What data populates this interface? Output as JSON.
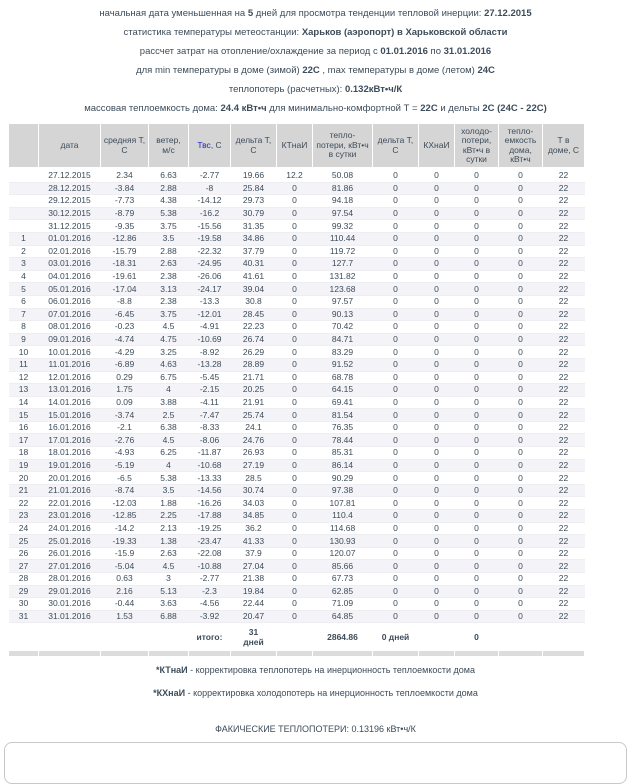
{
  "page": {
    "text_color": "#3d4c5a",
    "accent_blue": "#2222cc",
    "header_cell_bg": "#d5d5d5",
    "stripe_bg": "#f4f4f8"
  },
  "header": {
    "lines": [
      [
        {
          "t": "начальная дата уменьшенная на "
        },
        {
          "t": "5",
          "b": true
        },
        {
          "t": " дней для просмотра тенденции тепловой инерции: "
        },
        {
          "t": "27.12.2015",
          "b": true
        }
      ],
      [
        {
          "t": "статистика температуры метеостанции: "
        },
        {
          "t": "Харьков (аэропорт) в Харьковской области",
          "b": true
        }
      ],
      [
        {
          "t": "рассчет затрат на отопление/охлаждение за период с "
        },
        {
          "t": "01.01.2016",
          "b": true
        },
        {
          "t": " по "
        },
        {
          "t": "31.01.2016",
          "b": true
        }
      ],
      [
        {
          "t": "для min температуры в доме (зимой) "
        },
        {
          "t": "22С",
          "b": true
        },
        {
          "t": " , max температуры в доме (летом) "
        },
        {
          "t": "24С",
          "b": true
        }
      ],
      [
        {
          "t": "теплопотерь (расчетных): "
        },
        {
          "t": "0.132кВт•ч/К",
          "b": true
        }
      ],
      [
        {
          "t": "массовая теплоемкость дома: "
        },
        {
          "t": "24.4 кВт•ч",
          "b": true
        },
        {
          "t": " для минимально-комфортной Т = "
        },
        {
          "t": "22С",
          "b": true
        },
        {
          "t": " и дельты "
        },
        {
          "t": "2С (24С - 22С)",
          "b": true
        }
      ]
    ]
  },
  "table": {
    "columns": [
      {
        "label": ""
      },
      {
        "label": "дата"
      },
      {
        "label": "средняя Т, С"
      },
      {
        "label": "ветер, м/с"
      },
      {
        "accent_label": "Твс",
        "label": ", С"
      },
      {
        "label": "дельта Т, С"
      },
      {
        "label": "КТнаИ"
      },
      {
        "label": "тепло-потери, кВт•ч в сутки"
      },
      {
        "label": "дельта Т, С"
      },
      {
        "label": "КХнаИ"
      },
      {
        "label": "холодо-потери, кВт•ч в сутки"
      },
      {
        "label": "тепло-емкость дома, кВт•ч"
      },
      {
        "label": "Т в доме, С"
      }
    ],
    "rows": [
      [
        "",
        "27.12.2015",
        "2.34",
        "6.63",
        "-2.77",
        "19.66",
        "12.2",
        "50.08",
        "0",
        "0",
        "0",
        "0",
        "22"
      ],
      [
        "",
        "28.12.2015",
        "-3.84",
        "2.88",
        "-8",
        "25.84",
        "0",
        "81.86",
        "0",
        "0",
        "0",
        "0",
        "22"
      ],
      [
        "",
        "29.12.2015",
        "-7.73",
        "4.38",
        "-14.12",
        "29.73",
        "0",
        "94.18",
        "0",
        "0",
        "0",
        "0",
        "22"
      ],
      [
        "",
        "30.12.2015",
        "-8.79",
        "5.38",
        "-16.2",
        "30.79",
        "0",
        "97.54",
        "0",
        "0",
        "0",
        "0",
        "22"
      ],
      [
        "",
        "31.12.2015",
        "-9.35",
        "3.75",
        "-15.56",
        "31.35",
        "0",
        "99.32",
        "0",
        "0",
        "0",
        "0",
        "22"
      ],
      [
        "1",
        "01.01.2016",
        "-12.86",
        "3.5",
        "-19.58",
        "34.86",
        "0",
        "110.44",
        "0",
        "0",
        "0",
        "0",
        "22"
      ],
      [
        "2",
        "02.01.2016",
        "-15.79",
        "2.88",
        "-22.32",
        "37.79",
        "0",
        "119.72",
        "0",
        "0",
        "0",
        "0",
        "22"
      ],
      [
        "3",
        "03.01.2016",
        "-18.31",
        "2.63",
        "-24.95",
        "40.31",
        "0",
        "127.7",
        "0",
        "0",
        "0",
        "0",
        "22"
      ],
      [
        "4",
        "04.01.2016",
        "-19.61",
        "2.38",
        "-26.06",
        "41.61",
        "0",
        "131.82",
        "0",
        "0",
        "0",
        "0",
        "22"
      ],
      [
        "5",
        "05.01.2016",
        "-17.04",
        "3.13",
        "-24.17",
        "39.04",
        "0",
        "123.68",
        "0",
        "0",
        "0",
        "0",
        "22"
      ],
      [
        "6",
        "06.01.2016",
        "-8.8",
        "2.38",
        "-13.3",
        "30.8",
        "0",
        "97.57",
        "0",
        "0",
        "0",
        "0",
        "22"
      ],
      [
        "7",
        "07.01.2016",
        "-6.45",
        "3.75",
        "-12.01",
        "28.45",
        "0",
        "90.13",
        "0",
        "0",
        "0",
        "0",
        "22"
      ],
      [
        "8",
        "08.01.2016",
        "-0.23",
        "4.5",
        "-4.91",
        "22.23",
        "0",
        "70.42",
        "0",
        "0",
        "0",
        "0",
        "22"
      ],
      [
        "9",
        "09.01.2016",
        "-4.74",
        "4.75",
        "-10.69",
        "26.74",
        "0",
        "84.71",
        "0",
        "0",
        "0",
        "0",
        "22"
      ],
      [
        "10",
        "10.01.2016",
        "-4.29",
        "3.25",
        "-8.92",
        "26.29",
        "0",
        "83.29",
        "0",
        "0",
        "0",
        "0",
        "22"
      ],
      [
        "11",
        "11.01.2016",
        "-6.89",
        "4.63",
        "-13.28",
        "28.89",
        "0",
        "91.52",
        "0",
        "0",
        "0",
        "0",
        "22"
      ],
      [
        "12",
        "12.01.2016",
        "0.29",
        "6.75",
        "-5.45",
        "21.71",
        "0",
        "68.78",
        "0",
        "0",
        "0",
        "0",
        "22"
      ],
      [
        "13",
        "13.01.2016",
        "1.75",
        "4",
        "-2.15",
        "20.25",
        "0",
        "64.15",
        "0",
        "0",
        "0",
        "0",
        "22"
      ],
      [
        "14",
        "14.01.2016",
        "0.09",
        "3.88",
        "-4.11",
        "21.91",
        "0",
        "69.41",
        "0",
        "0",
        "0",
        "0",
        "22"
      ],
      [
        "15",
        "15.01.2016",
        "-3.74",
        "2.5",
        "-7.47",
        "25.74",
        "0",
        "81.54",
        "0",
        "0",
        "0",
        "0",
        "22"
      ],
      [
        "16",
        "16.01.2016",
        "-2.1",
        "6.38",
        "-8.33",
        "24.1",
        "0",
        "76.35",
        "0",
        "0",
        "0",
        "0",
        "22"
      ],
      [
        "17",
        "17.01.2016",
        "-2.76",
        "4.5",
        "-8.06",
        "24.76",
        "0",
        "78.44",
        "0",
        "0",
        "0",
        "0",
        "22"
      ],
      [
        "18",
        "18.01.2016",
        "-4.93",
        "6.25",
        "-11.87",
        "26.93",
        "0",
        "85.31",
        "0",
        "0",
        "0",
        "0",
        "22"
      ],
      [
        "19",
        "19.01.2016",
        "-5.19",
        "4",
        "-10.68",
        "27.19",
        "0",
        "86.14",
        "0",
        "0",
        "0",
        "0",
        "22"
      ],
      [
        "20",
        "20.01.2016",
        "-6.5",
        "5.38",
        "-13.33",
        "28.5",
        "0",
        "90.29",
        "0",
        "0",
        "0",
        "0",
        "22"
      ],
      [
        "21",
        "21.01.2016",
        "-8.74",
        "3.5",
        "-14.56",
        "30.74",
        "0",
        "97.38",
        "0",
        "0",
        "0",
        "0",
        "22"
      ],
      [
        "22",
        "22.01.2016",
        "-12.03",
        "1.88",
        "-16.26",
        "34.03",
        "0",
        "107.81",
        "0",
        "0",
        "0",
        "0",
        "22"
      ],
      [
        "23",
        "23.01.2016",
        "-12.85",
        "2.25",
        "-17.88",
        "34.85",
        "0",
        "110.4",
        "0",
        "0",
        "0",
        "0",
        "22"
      ],
      [
        "24",
        "24.01.2016",
        "-14.2",
        "2.13",
        "-19.25",
        "36.2",
        "0",
        "114.68",
        "0",
        "0",
        "0",
        "0",
        "22"
      ],
      [
        "25",
        "25.01.2016",
        "-19.33",
        "1.38",
        "-23.47",
        "41.33",
        "0",
        "130.93",
        "0",
        "0",
        "0",
        "0",
        "22"
      ],
      [
        "26",
        "26.01.2016",
        "-15.9",
        "2.63",
        "-22.08",
        "37.9",
        "0",
        "120.07",
        "0",
        "0",
        "0",
        "0",
        "22"
      ],
      [
        "27",
        "27.01.2016",
        "-5.04",
        "4.5",
        "-10.88",
        "27.04",
        "0",
        "85.66",
        "0",
        "0",
        "0",
        "0",
        "22"
      ],
      [
        "28",
        "28.01.2016",
        "0.63",
        "3",
        "-2.77",
        "21.38",
        "0",
        "67.73",
        "0",
        "0",
        "0",
        "0",
        "22"
      ],
      [
        "29",
        "29.01.2016",
        "2.16",
        "5.13",
        "-2.3",
        "19.84",
        "0",
        "62.85",
        "0",
        "0",
        "0",
        "0",
        "22"
      ],
      [
        "30",
        "30.01.2016",
        "-0.44",
        "3.63",
        "-4.56",
        "22.44",
        "0",
        "71.09",
        "0",
        "0",
        "0",
        "0",
        "22"
      ],
      [
        "31",
        "31.01.2016",
        "1.53",
        "6.88",
        "-3.92",
        "20.47",
        "0",
        "64.85",
        "0",
        "0",
        "0",
        "0",
        "22"
      ]
    ],
    "totals": [
      "",
      "",
      "",
      "",
      "итого:",
      "31\nдней",
      "",
      "2864.86",
      "0 дней",
      "",
      "0",
      "",
      ""
    ]
  },
  "footnotes": {
    "ktnai": {
      "lead": "*КТнаИ",
      "rest": " - корректировка теплопотерь на инерционность теплоемкости дома"
    },
    "kkhnai": {
      "lead": "*КХнаИ",
      "rest": " - корректировка холодопотерь на инерционность теплоемкости дома"
    },
    "actual_heatloss": "ФАКИЧЕСКИЕ ТЕПЛОПОТЕРИ: 0.13196 кВт•ч/К"
  }
}
